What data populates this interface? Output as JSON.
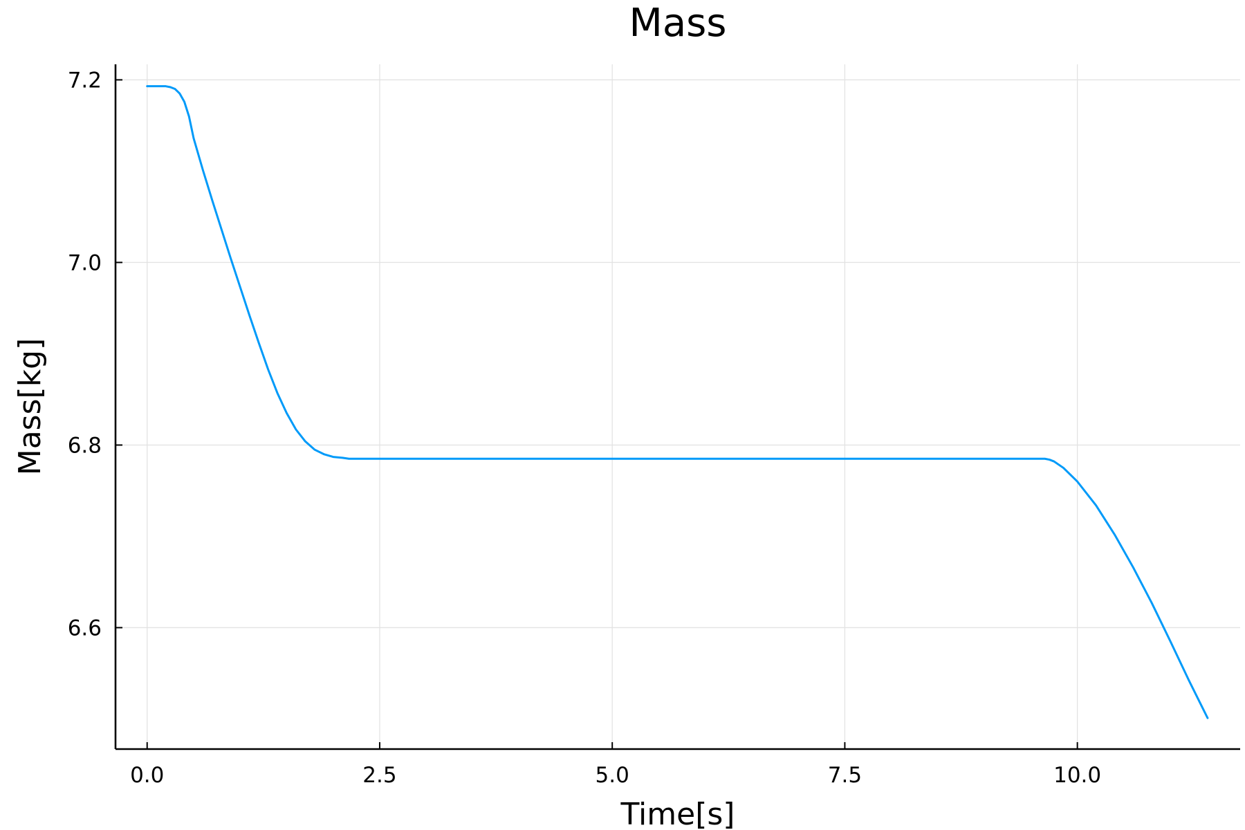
{
  "chart_data": {
    "type": "line",
    "title": "Mass",
    "xlabel": "Time[s]",
    "ylabel": "Mass[kg]",
    "xlim": [
      -0.34,
      11.75
    ],
    "ylim": [
      6.467,
      7.217
    ],
    "x_ticks": [
      0.0,
      2.5,
      5.0,
      7.5,
      10.0
    ],
    "x_tick_labels": [
      "0.0",
      "2.5",
      "5.0",
      "7.5",
      "10.0"
    ],
    "y_ticks": [
      6.6,
      6.8,
      7.0,
      7.2
    ],
    "y_tick_labels": [
      "6.6",
      "6.8",
      "7.0",
      "7.2"
    ],
    "grid": true,
    "legend": "none",
    "series": [
      {
        "color": "#009af9",
        "x": [
          0.0,
          0.1,
          0.2,
          0.25,
          0.3,
          0.35,
          0.4,
          0.45,
          0.5,
          0.6,
          0.7,
          0.8,
          0.9,
          1.0,
          1.1,
          1.2,
          1.3,
          1.4,
          1.5,
          1.6,
          1.7,
          1.8,
          1.9,
          2.0,
          2.1,
          2.17,
          2.2,
          3.0,
          4.0,
          5.0,
          6.0,
          7.0,
          8.0,
          9.0,
          9.5,
          9.65,
          9.7,
          9.75,
          9.85,
          10.0,
          10.2,
          10.4,
          10.6,
          10.8,
          11.0,
          11.2,
          11.4
        ],
        "y": [
          7.193,
          7.193,
          7.193,
          7.192,
          7.19,
          7.185,
          7.176,
          7.16,
          7.136,
          7.101,
          7.068,
          7.036,
          7.004,
          6.973,
          6.942,
          6.912,
          6.883,
          6.857,
          6.835,
          6.817,
          6.804,
          6.795,
          6.79,
          6.787,
          6.786,
          6.785,
          6.785,
          6.785,
          6.785,
          6.785,
          6.785,
          6.785,
          6.785,
          6.785,
          6.785,
          6.785,
          6.784,
          6.782,
          6.775,
          6.76,
          6.734,
          6.702,
          6.666,
          6.627,
          6.585,
          6.542,
          6.501
        ]
      }
    ]
  }
}
